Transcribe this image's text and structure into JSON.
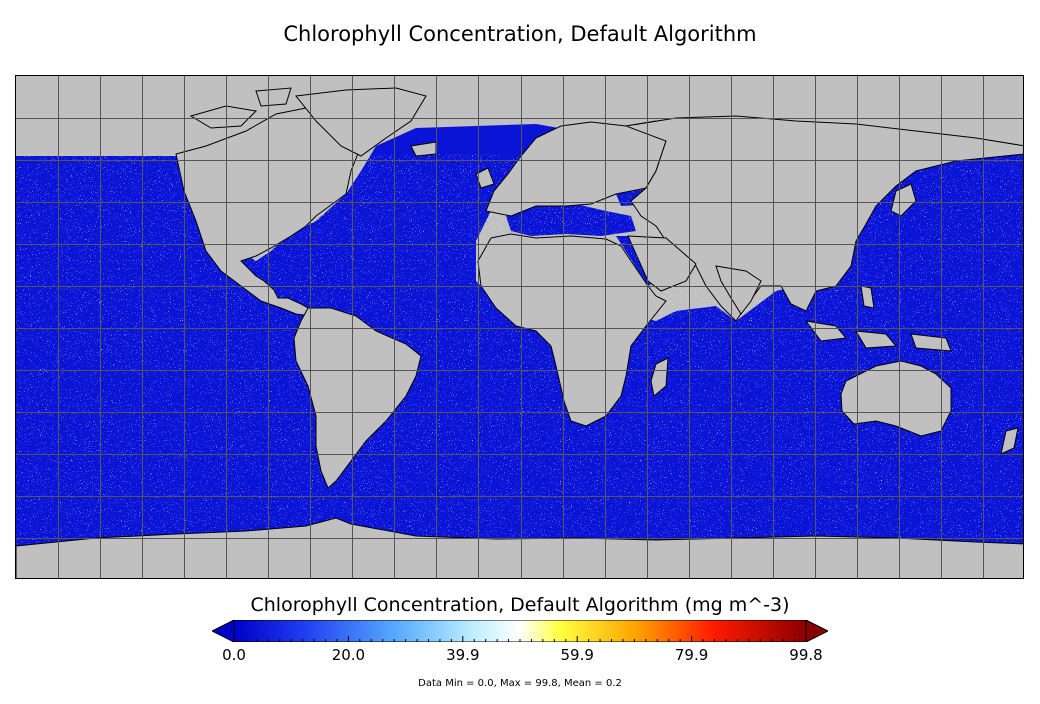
{
  "title": "Chlorophyll Concentration, Default Algorithm",
  "colorbar": {
    "title": "Chlorophyll Concentration, Default Algorithm (mg m^-3)",
    "ticks": [
      "0.0",
      "20.0",
      "39.9",
      "59.9",
      "79.9",
      "99.8"
    ],
    "colors": [
      "#0000c8",
      "#1f5cff",
      "#7fc4ff",
      "#ffffff",
      "#ffff00",
      "#ff8c00",
      "#ff0000",
      "#8b0000"
    ],
    "under_color": "#0000c8",
    "over_color": "#8b0000"
  },
  "stats": "Data Min = 0.0, Max = 99.8, Mean = 0.2",
  "map": {
    "projection": "equirectangular",
    "land_color": "#c0c0c0",
    "ocean_color": "#0a14d6",
    "grid_color": "#555555",
    "grid_lon_step": 15,
    "grid_lat_step": 15
  }
}
